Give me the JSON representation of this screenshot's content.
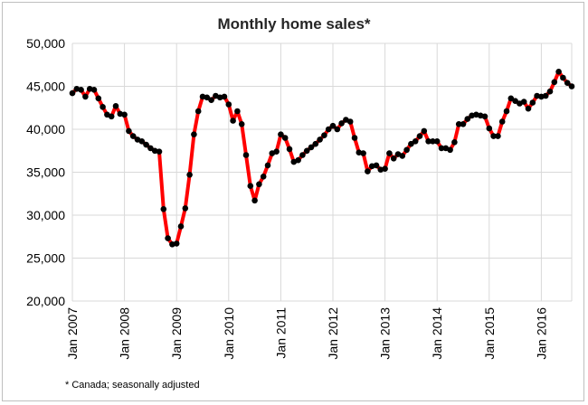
{
  "chart_data": {
    "type": "line",
    "title": "Monthly home sales*",
    "footnote": "* Canada; seasonally adjusted",
    "xlabel": "",
    "ylabel": "",
    "x_start": "Jan 2007",
    "x_ticks": [
      "Jan 2007",
      "Jan 2008",
      "Jan 2009",
      "Jan 2010",
      "Jan 2011",
      "Jan 2012",
      "Jan 2013",
      "Jan 2014",
      "Jan 2015",
      "Jan 2016"
    ],
    "y_ticks": [
      "20,000",
      "25,000",
      "30,000",
      "35,000",
      "40,000",
      "45,000",
      "50,000"
    ],
    "ylim": [
      20000,
      50000
    ],
    "grid": true,
    "line_color": "#ff0000",
    "marker_color": "#000000",
    "series": [
      {
        "values": [
          44200,
          44700,
          44600,
          43800,
          44700,
          44600,
          43600,
          42600,
          41700,
          41500,
          42700,
          41800,
          41700,
          39800,
          39200,
          38800,
          38600,
          38200,
          37800,
          37500,
          37400,
          30700,
          27300,
          26600,
          26700,
          28700,
          30800,
          34700,
          39400,
          42100,
          43800,
          43700,
          43400,
          43900,
          43700,
          43800,
          42900,
          41000,
          42100,
          40600,
          37000,
          33400,
          31700,
          33600,
          34500,
          35800,
          37200,
          37400,
          39400,
          39000,
          37700,
          36200,
          36400,
          37000,
          37500,
          37900,
          38300,
          38800,
          39300,
          40000,
          40400,
          40000,
          40700,
          41100,
          40900,
          39000,
          37300,
          37200,
          35100,
          35700,
          35800,
          35300,
          35400,
          37200,
          36600,
          37100,
          36900,
          37600,
          38300,
          38600,
          39200,
          39800,
          38600,
          38600,
          38600,
          37800,
          37800,
          37600,
          38500,
          40600,
          40600,
          41200,
          41600,
          41700,
          41600,
          41500,
          40100,
          39200,
          39200,
          40900,
          42100,
          43600,
          43300,
          43000,
          43200,
          42400,
          43100,
          43900,
          43800,
          43900,
          44400,
          45500,
          46700,
          46000,
          45400,
          45000
        ]
      }
    ]
  }
}
